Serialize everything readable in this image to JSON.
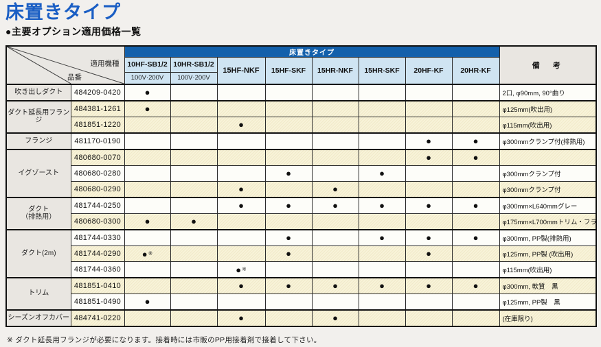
{
  "page": {
    "title": "床置きタイプ",
    "subtitle": "●主要オプション適用価格一覧",
    "footnote": "※ ダクト延長用フランジが必要になります。接着時には市販のPP用接着剤で接着して下さい。"
  },
  "colors": {
    "title_blue": "#1a5ec4",
    "band_blue": "#1360ab",
    "header_light_blue": "#cfe4f2",
    "label_gray": "#e9e6e1",
    "row_yellow": "#f8f3d9",
    "row_white": "#fdfdf9"
  },
  "table": {
    "band_label": "床置きタイプ",
    "corner": {
      "top_label": "適用機種",
      "bottom_label": "品番"
    },
    "remarks_header": "備　考",
    "columns": [
      {
        "label": "10HF-SB1/2",
        "sub": "100V·200V",
        "emphasis": false
      },
      {
        "label": "10HR-SB1/2",
        "sub": "100V·200V",
        "emphasis": false
      },
      {
        "label": "15HF-NKF",
        "sub": "",
        "emphasis": true
      },
      {
        "label": "15HF-SKF",
        "sub": "",
        "emphasis": false
      },
      {
        "label": "15HR-NKF",
        "sub": "",
        "emphasis": false
      },
      {
        "label": "15HR-SKF",
        "sub": "",
        "emphasis": false
      },
      {
        "label": "20HF-KF",
        "sub": "",
        "emphasis": false
      },
      {
        "label": "20HR-KF",
        "sub": "",
        "emphasis": false
      }
    ],
    "groups": [
      {
        "name": "吹き出しダクト",
        "rows": [
          {
            "part": "484209-0420",
            "cells": [
              "●",
              "",
              "",
              "",
              "",
              "",
              "",
              ""
            ],
            "remark": "2口, φ90mm, 90°曲り",
            "shade": "white"
          }
        ]
      },
      {
        "name": "ダクト延長用フランジ",
        "rows": [
          {
            "part": "484381-1261",
            "cells": [
              "●",
              "",
              "",
              "",
              "",
              "",
              "",
              ""
            ],
            "remark": "φ125mm(吹出用)",
            "shade": "yellow"
          },
          {
            "part": "481851-1220",
            "cells": [
              "",
              "",
              "●",
              "",
              "",
              "",
              "",
              ""
            ],
            "remark": "φ115mm(吹出用)",
            "shade": "yellow"
          }
        ]
      },
      {
        "name": "フランジ",
        "rows": [
          {
            "part": "481170-0190",
            "cells": [
              "",
              "",
              "",
              "",
              "",
              "",
              "●",
              "●"
            ],
            "remark": "φ300mmクランプ付(排熱用)",
            "shade": "white"
          }
        ]
      },
      {
        "name": "イグゾースト",
        "rows": [
          {
            "part": "480680-0070",
            "cells": [
              "",
              "",
              "",
              "",
              "",
              "",
              "●",
              "●"
            ],
            "remark": "",
            "shade": "yellow"
          },
          {
            "part": "480680-0280",
            "cells": [
              "",
              "",
              "",
              "●",
              "",
              "●",
              "",
              ""
            ],
            "remark": "φ300mmクランプ付",
            "shade": "white"
          },
          {
            "part": "480680-0290",
            "cells": [
              "",
              "",
              "●",
              "",
              "●",
              "",
              "",
              ""
            ],
            "remark": "φ300mmクランプ付",
            "shade": "yellow"
          }
        ]
      },
      {
        "name": "ダクト\n（排熱用）",
        "rows": [
          {
            "part": "481744-0250",
            "cells": [
              "",
              "",
              "●",
              "●",
              "●",
              "●",
              "●",
              "●"
            ],
            "remark": "φ300mm×L640mmグレー",
            "shade": "white"
          },
          {
            "part": "480680-0300",
            "cells": [
              "●",
              "●",
              "",
              "",
              "",
              "",
              "",
              ""
            ],
            "remark": "φ175mm×L700mmトリム・フランジ付",
            "shade": "yellow"
          }
        ]
      },
      {
        "name": "ダクト(2m)",
        "rows": [
          {
            "part": "481744-0330",
            "cells": [
              "",
              "",
              "",
              "●",
              "",
              "●",
              "●",
              "●"
            ],
            "remark": "φ300mm, PP製(排熱用)",
            "shade": "white"
          },
          {
            "part": "481744-0290",
            "cells": [
              "●※",
              "",
              "",
              "●",
              "",
              "",
              "●",
              ""
            ],
            "remark": "φ125mm, PP製 (吹出用)",
            "shade": "yellow"
          },
          {
            "part": "481744-0360",
            "cells": [
              "",
              "",
              "●※",
              "",
              "",
              "",
              "",
              ""
            ],
            "remark": "φ115mm(吹出用)",
            "shade": "white"
          }
        ]
      },
      {
        "name": "トリム",
        "rows": [
          {
            "part": "481851-0410",
            "cells": [
              "",
              "",
              "●",
              "●",
              "●",
              "●",
              "●",
              "●"
            ],
            "remark": "φ300mm, 軟質　黒",
            "shade": "yellow"
          },
          {
            "part": "481851-0490",
            "cells": [
              "●",
              "",
              "",
              "",
              "",
              "",
              "",
              ""
            ],
            "remark": "φ125mm, PP製　黒",
            "shade": "white"
          }
        ]
      },
      {
        "name": "シーズンオフカバー",
        "rows": [
          {
            "part": "484741-0220",
            "cells": [
              "",
              "",
              "●",
              "",
              "●",
              "",
              "",
              ""
            ],
            "remark": "(在庫限り)",
            "shade": "yellow"
          }
        ]
      }
    ]
  }
}
